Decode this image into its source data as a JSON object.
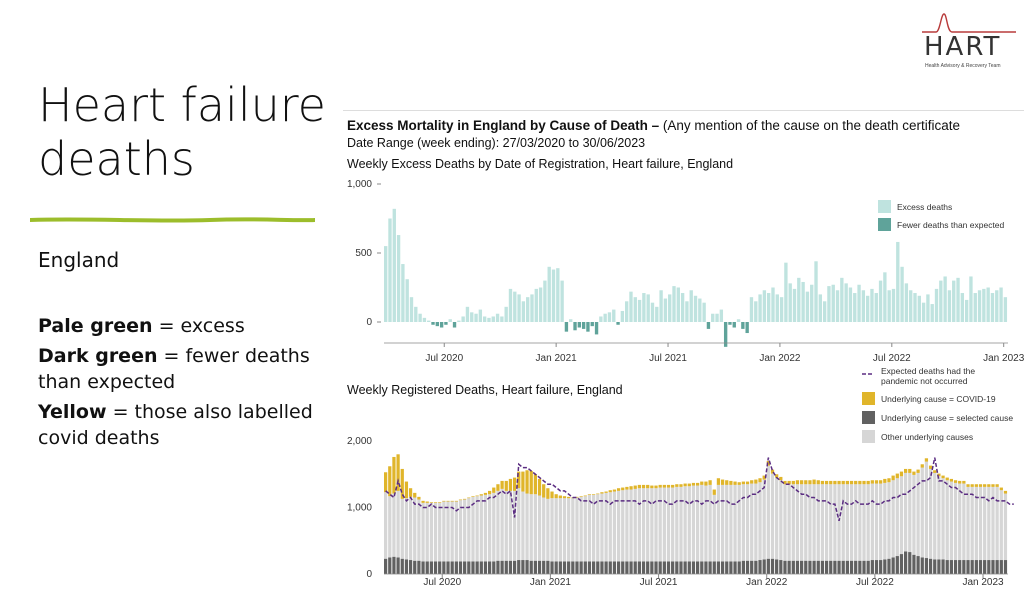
{
  "logo": {
    "text": "HART",
    "subtitle": "Health Advisory & Recovery Team"
  },
  "slide": {
    "title_line1": "Heart failure",
    "title_line2": "deaths",
    "region": "England",
    "notes": [
      {
        "bold": "Pale green",
        "text": " = excess"
      },
      {
        "bold": "Dark green",
        "text": " = fewer deaths than expected"
      },
      {
        "bold": "Yellow",
        "text": " = those also labelled covid deaths"
      }
    ]
  },
  "header": {
    "title_bold": "Excess Mortality in England by Cause of Death – ",
    "title_rest": "(Any mention of the cause on the death certificate",
    "date_range": "Date Range (week ending): 27/03/2020 to 30/06/2023"
  },
  "colors": {
    "excess": "#bfe3df",
    "fewer": "#5fa39a",
    "covid": "#e0b52a",
    "selected": "#616161",
    "other": "#d6d6d6",
    "expected": "#5b2d82",
    "axis": "#888888"
  },
  "chart_data": [
    {
      "type": "bar",
      "title": "Weekly Excess Deaths by Date of Registration, Heart failure, England",
      "x_tick_labels": [
        "Jul 2020",
        "Jan 2021",
        "Jul 2021",
        "Jan 2022",
        "Jul 2022",
        "Jan 2023"
      ],
      "x_tick_weeks": [
        14,
        40,
        66,
        92,
        118,
        144
      ],
      "y_tick_labels": [
        "1,000",
        "500",
        "0"
      ],
      "ylim": [
        -200,
        1000
      ],
      "legend": [
        "Excess deaths",
        "Fewer deaths than expected"
      ],
      "legend_position": "top-right",
      "values": [
        550,
        750,
        820,
        630,
        420,
        310,
        180,
        110,
        60,
        30,
        10,
        -20,
        -30,
        -40,
        -20,
        20,
        -40,
        10,
        40,
        110,
        70,
        60,
        90,
        40,
        30,
        40,
        60,
        40,
        110,
        240,
        220,
        200,
        150,
        180,
        200,
        240,
        250,
        300,
        400,
        380,
        390,
        300,
        -70,
        20,
        -60,
        -40,
        -50,
        -70,
        -30,
        -90,
        40,
        60,
        70,
        90,
        -20,
        80,
        150,
        220,
        180,
        160,
        210,
        200,
        140,
        110,
        230,
        170,
        200,
        260,
        250,
        210,
        150,
        230,
        190,
        170,
        140,
        -50,
        60,
        60,
        90,
        -180,
        -20,
        -40,
        20,
        -50,
        -80,
        180,
        150,
        200,
        230,
        210,
        250,
        200,
        180,
        430,
        280,
        240,
        320,
        290,
        220,
        270,
        440,
        200,
        150,
        260,
        270,
        230,
        320,
        280,
        250,
        210,
        270,
        230,
        190,
        240,
        210,
        300,
        360,
        230,
        240,
        580,
        400,
        280,
        230,
        210,
        190,
        140,
        200,
        130,
        240,
        300,
        330,
        230,
        300,
        320,
        210,
        160,
        330,
        210,
        230,
        240,
        250,
        210,
        230,
        250,
        180
      ]
    },
    {
      "type": "bar",
      "title": "Weekly Registered Deaths, Heart failure, England",
      "x_tick_labels": [
        "Jul 2020",
        "Jan 2021",
        "Jul 2021",
        "Jan 2022",
        "Jul 2022",
        "Jan 2023"
      ],
      "x_tick_weeks": [
        14,
        40,
        66,
        92,
        118,
        144
      ],
      "y_tick_labels": [
        "2,000",
        "1,000",
        "0"
      ],
      "ylim": [
        0,
        2000
      ],
      "legend_position": "top-right",
      "series": [
        {
          "name": "Expected deaths had the pandemic not occurred",
          "values": [
            1250,
            1200,
            1150,
            1400,
            1200,
            1100,
            1150,
            1050,
            1050,
            1000,
            1000,
            1050,
            1000,
            1000,
            1000,
            1000,
            1000,
            950,
            1000,
            1000,
            1000,
            1050,
            1100,
            1100,
            1100,
            1150,
            1150,
            1200,
            1250,
            1200,
            1250,
            850,
            1650,
            1600,
            1600,
            1550,
            1500,
            1450,
            1400,
            1350,
            1350,
            1300,
            1250,
            1250,
            1200,
            1150,
            1150,
            1100,
            1100,
            1100,
            1050,
            1100,
            1100,
            1100,
            1050,
            1100,
            1100,
            1100,
            1100,
            1100,
            1100,
            1050,
            1100,
            1100,
            1050,
            1100,
            1100,
            1100,
            1050,
            1050,
            1100,
            1100,
            1100,
            1050,
            1100,
            1100,
            1050,
            1100,
            1100,
            1050,
            1100,
            1100,
            1100,
            1050,
            1050,
            1100,
            1150,
            1150,
            1200,
            1200,
            1250,
            1300,
            1750,
            1550,
            1450,
            1400,
            1350,
            1350,
            1300,
            1250,
            1200,
            1200,
            1150,
            1150,
            1100,
            1100,
            1100,
            1050,
            1050,
            800,
            1100,
            1050,
            1050,
            1100,
            1050,
            1050,
            1050,
            1100,
            1050,
            1050,
            1100,
            1100,
            1150,
            1150,
            1200,
            1200,
            1250,
            1300,
            1350,
            1400,
            1400,
            1450,
            1750,
            1400,
            1400,
            1350,
            1300,
            1300,
            1250,
            1200,
            1200,
            1200,
            1150,
            1150,
            1150,
            1100,
            1150,
            1100,
            1100,
            1100,
            1050,
            1050
          ]
        },
        {
          "name": "Underlying cause  = COVID-19",
          "values": [
            300,
            450,
            550,
            550,
            450,
            250,
            130,
            70,
            40,
            30,
            20,
            10,
            10,
            10,
            10,
            10,
            10,
            10,
            10,
            10,
            10,
            10,
            10,
            20,
            30,
            50,
            80,
            100,
            120,
            150,
            180,
            200,
            250,
            300,
            350,
            350,
            300,
            250,
            200,
            160,
            100,
            60,
            40,
            30,
            20,
            10,
            10,
            10,
            10,
            10,
            10,
            10,
            20,
            20,
            30,
            30,
            40,
            40,
            40,
            50,
            50,
            50,
            50,
            50,
            40,
            40,
            40,
            40,
            40,
            40,
            40,
            40,
            40,
            40,
            40,
            40,
            50,
            60,
            70,
            80,
            100,
            80,
            70,
            60,
            50,
            40,
            40,
            40,
            50,
            60,
            60,
            60,
            70,
            60,
            50,
            50,
            50,
            50,
            50,
            60,
            60,
            60,
            60,
            70,
            60,
            50,
            50,
            50,
            50,
            50,
            50,
            50,
            50,
            50,
            50,
            50,
            50,
            50,
            50,
            50,
            60,
            60,
            70,
            70,
            70,
            60,
            60,
            50,
            50,
            50,
            50,
            50,
            40,
            40,
            40,
            40,
            40,
            40,
            40,
            40,
            40,
            40,
            40,
            40,
            40,
            40,
            40,
            40,
            40,
            40
          ]
        },
        {
          "name": "Underlying cause = selected cause",
          "values": [
            230,
            250,
            260,
            250,
            230,
            220,
            210,
            200,
            200,
            190,
            190,
            190,
            190,
            190,
            190,
            190,
            190,
            190,
            190,
            190,
            190,
            190,
            190,
            190,
            190,
            190,
            190,
            200,
            200,
            200,
            200,
            200,
            210,
            210,
            210,
            200,
            200,
            200,
            200,
            200,
            190,
            190,
            190,
            190,
            190,
            190,
            190,
            190,
            190,
            190,
            190,
            190,
            190,
            190,
            190,
            190,
            190,
            190,
            190,
            190,
            190,
            190,
            190,
            190,
            190,
            190,
            190,
            190,
            190,
            190,
            190,
            190,
            190,
            190,
            190,
            190,
            190,
            190,
            190,
            190,
            190,
            190,
            190,
            190,
            190,
            190,
            200,
            200,
            200,
            200,
            210,
            220,
            230,
            230,
            220,
            210,
            200,
            200,
            200,
            200,
            200,
            200,
            200,
            200,
            200,
            200,
            200,
            200,
            200,
            200,
            200,
            200,
            200,
            200,
            200,
            200,
            200,
            210,
            210,
            210,
            220,
            230,
            250,
            270,
            300,
            340,
            330,
            290,
            270,
            250,
            240,
            230,
            220,
            220,
            220,
            210,
            210,
            210,
            210,
            210,
            210,
            210,
            210,
            210,
            210,
            210,
            210,
            210,
            210,
            210
          ]
        },
        {
          "name": "Other underlying causes",
          "values": [
            1000,
            920,
            950,
            1000,
            900,
            920,
            950,
            950,
            920,
            880,
            880,
            880,
            880,
            880,
            900,
            900,
            900,
            900,
            920,
            930,
            950,
            970,
            980,
            990,
            1000,
            1010,
            1030,
            1050,
            1080,
            1050,
            1050,
            1050,
            1080,
            1030,
            1000,
            1000,
            1000,
            980,
            950,
            930,
            950,
            950,
            950,
            950,
            950,
            950,
            960,
            970,
            980,
            1000,
            1000,
            1010,
            1020,
            1030,
            1040,
            1050,
            1060,
            1070,
            1080,
            1080,
            1090,
            1100,
            1100,
            1100,
            1100,
            1100,
            1110,
            1110,
            1110,
            1110,
            1120,
            1120,
            1130,
            1130,
            1140,
            1140,
            1150,
            1140,
            1150,
            1000,
            1150,
            1150,
            1150,
            1150,
            1150,
            1150,
            1150,
            1150,
            1160,
            1160,
            1170,
            1200,
            1400,
            1280,
            1230,
            1200,
            1150,
            1150,
            1150,
            1150,
            1150,
            1150,
            1150,
            1150,
            1150,
            1150,
            1150,
            1150,
            1150,
            1150,
            1150,
            1150,
            1150,
            1150,
            1150,
            1150,
            1150,
            1150,
            1150,
            1150,
            1150,
            1150,
            1160,
            1170,
            1170,
            1180,
            1190,
            1200,
            1250,
            1350,
            1450,
            1350,
            1300,
            1250,
            1220,
            1200,
            1180,
            1160,
            1150,
            1150,
            1100,
            1100,
            1100,
            1100,
            1100,
            1100,
            1100,
            1100,
            1050,
            1000
          ]
        }
      ]
    }
  ]
}
